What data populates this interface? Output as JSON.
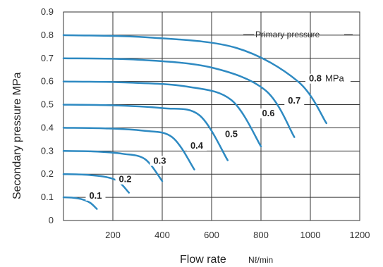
{
  "chart_data": {
    "type": "line",
    "xlabel": "Flow rate",
    "xunit": "Nℓ/min",
    "ylabel": "Secondary pressure  MPa",
    "xlim": [
      0,
      1200
    ],
    "ylim": [
      0,
      0.9
    ],
    "x_ticks": [
      {
        "value": 200,
        "label": "200"
      },
      {
        "value": 400,
        "label": "400"
      },
      {
        "value": 600,
        "label": "600"
      },
      {
        "value": 800,
        "label": "800"
      },
      {
        "value": 1000,
        "label": "1000"
      },
      {
        "value": 1200,
        "label": "1200"
      }
    ],
    "y_ticks": [
      {
        "value": 0,
        "label": "0"
      },
      {
        "value": 0.1,
        "label": "0.1"
      },
      {
        "value": 0.2,
        "label": "0.2"
      },
      {
        "value": 0.3,
        "label": "0.3"
      },
      {
        "value": 0.4,
        "label": "0.4"
      },
      {
        "value": 0.5,
        "label": "0.5"
      },
      {
        "value": 0.6,
        "label": "0.6"
      },
      {
        "value": 0.7,
        "label": "0.7"
      },
      {
        "value": 0.8,
        "label": "0.8"
      },
      {
        "value": 0.9,
        "label": "0.9"
      }
    ],
    "grid": true,
    "line_color": "#2e8ac2",
    "legend_title": "Primary pressure",
    "series": [
      {
        "name": "0.1",
        "points": [
          [
            0,
            0.1
          ],
          [
            40,
            0.098
          ],
          [
            80,
            0.09
          ],
          [
            110,
            0.075
          ],
          [
            135,
            0.05
          ]
        ]
      },
      {
        "name": "0.2",
        "points": [
          [
            0,
            0.2
          ],
          [
            80,
            0.198
          ],
          [
            160,
            0.19
          ],
          [
            220,
            0.17
          ],
          [
            265,
            0.12
          ]
        ]
      },
      {
        "name": "0.3",
        "points": [
          [
            0,
            0.3
          ],
          [
            120,
            0.298
          ],
          [
            240,
            0.288
          ],
          [
            330,
            0.265
          ],
          [
            400,
            0.17
          ]
        ]
      },
      {
        "name": "0.4",
        "points": [
          [
            0,
            0.4
          ],
          [
            160,
            0.398
          ],
          [
            320,
            0.388
          ],
          [
            440,
            0.36
          ],
          [
            530,
            0.22
          ]
        ]
      },
      {
        "name": "0.5",
        "points": [
          [
            0,
            0.5
          ],
          [
            200,
            0.497
          ],
          [
            400,
            0.485
          ],
          [
            550,
            0.455
          ],
          [
            665,
            0.26
          ]
        ]
      },
      {
        "name": "0.6",
        "points": [
          [
            0,
            0.6
          ],
          [
            250,
            0.596
          ],
          [
            500,
            0.578
          ],
          [
            680,
            0.52
          ],
          [
            800,
            0.32
          ]
        ]
      },
      {
        "name": "0.7",
        "points": [
          [
            0,
            0.7
          ],
          [
            300,
            0.694
          ],
          [
            600,
            0.66
          ],
          [
            820,
            0.56
          ],
          [
            935,
            0.36
          ]
        ]
      },
      {
        "name": "0.8",
        "points": [
          [
            0,
            0.8
          ],
          [
            350,
            0.79
          ],
          [
            700,
            0.745
          ],
          [
            950,
            0.6
          ],
          [
            1065,
            0.42
          ]
        ]
      }
    ],
    "curve_labels": [
      {
        "text": "0.1",
        "x": 130,
        "y": 0.095
      },
      {
        "text": "0.2",
        "x": 250,
        "y": 0.165
      },
      {
        "text": "0.3",
        "x": 390,
        "y": 0.245
      },
      {
        "text": "0.4",
        "x": 540,
        "y": 0.31
      },
      {
        "text": "0.5",
        "x": 680,
        "y": 0.36
      },
      {
        "text": "0.6",
        "x": 830,
        "y": 0.45
      },
      {
        "text": "0.7",
        "x": 935,
        "y": 0.505
      },
      {
        "text": "0.8",
        "x": 1020,
        "y": 0.6
      }
    ],
    "curve_label_unit": "MPa"
  }
}
